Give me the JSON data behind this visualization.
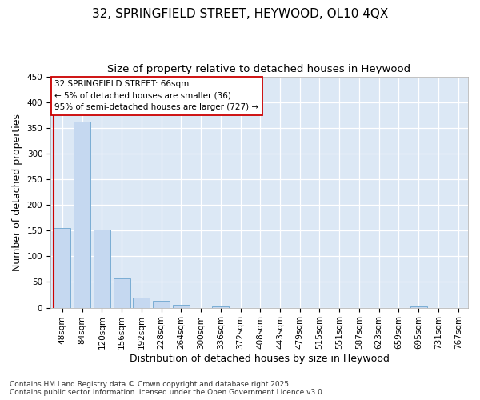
{
  "title_line1": "32, SPRINGFIELD STREET, HEYWOOD, OL10 4QX",
  "title_line2": "Size of property relative to detached houses in Heywood",
  "xlabel": "Distribution of detached houses by size in Heywood",
  "ylabel": "Number of detached properties",
  "categories": [
    "48sqm",
    "84sqm",
    "120sqm",
    "156sqm",
    "192sqm",
    "228sqm",
    "264sqm",
    "300sqm",
    "336sqm",
    "372sqm",
    "408sqm",
    "443sqm",
    "479sqm",
    "515sqm",
    "551sqm",
    "587sqm",
    "623sqm",
    "659sqm",
    "695sqm",
    "731sqm",
    "767sqm"
  ],
  "values": [
    155,
    362,
    152,
    57,
    20,
    14,
    6,
    0,
    2,
    0,
    0,
    0,
    0,
    0,
    0,
    0,
    0,
    0,
    2,
    0,
    0
  ],
  "bar_color": "#c5d8f0",
  "bar_edge_color": "#7aadd4",
  "vline_color": "#cc0000",
  "annotation_line1": "32 SPRINGFIELD STREET: 66sqm",
  "annotation_line2": "← 5% of detached houses are smaller (36)",
  "annotation_line3": "95% of semi-detached houses are larger (727) →",
  "annotation_box_color": "#ffffff",
  "annotation_box_edge": "#cc0000",
  "ylim": [
    0,
    450
  ],
  "yticks": [
    0,
    50,
    100,
    150,
    200,
    250,
    300,
    350,
    400,
    450
  ],
  "plot_bg_color": "#dce8f5",
  "fig_bg_color": "#ffffff",
  "grid_color": "#ffffff",
  "footer_line1": "Contains HM Land Registry data © Crown copyright and database right 2025.",
  "footer_line2": "Contains public sector information licensed under the Open Government Licence v3.0.",
  "title_fontsize": 11,
  "subtitle_fontsize": 9.5,
  "axis_label_fontsize": 9,
  "tick_fontsize": 7.5,
  "annotation_fontsize": 7.5,
  "footer_fontsize": 6.5
}
